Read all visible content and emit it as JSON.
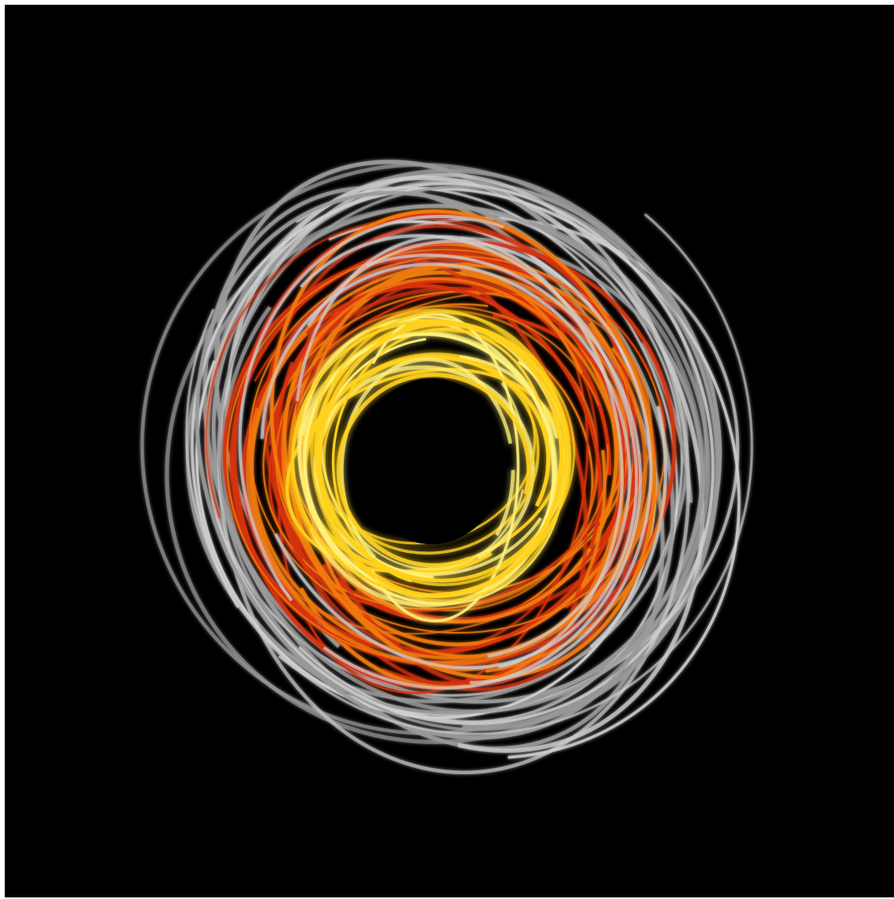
{
  "image": {
    "subject": "swirl-light-trails",
    "colors": {
      "background": "#000000",
      "frame": "#ffffff",
      "outer_trails": "#9a9a9a",
      "outer_trails_bright": "#d0d0d0",
      "mid_trails_red": "#d8320c",
      "mid_trails_orange": "#f07a10",
      "inner_trails_yellow": "#ffd21e",
      "inner_trails_hot": "#fff27a",
      "core": "#000000"
    }
  }
}
